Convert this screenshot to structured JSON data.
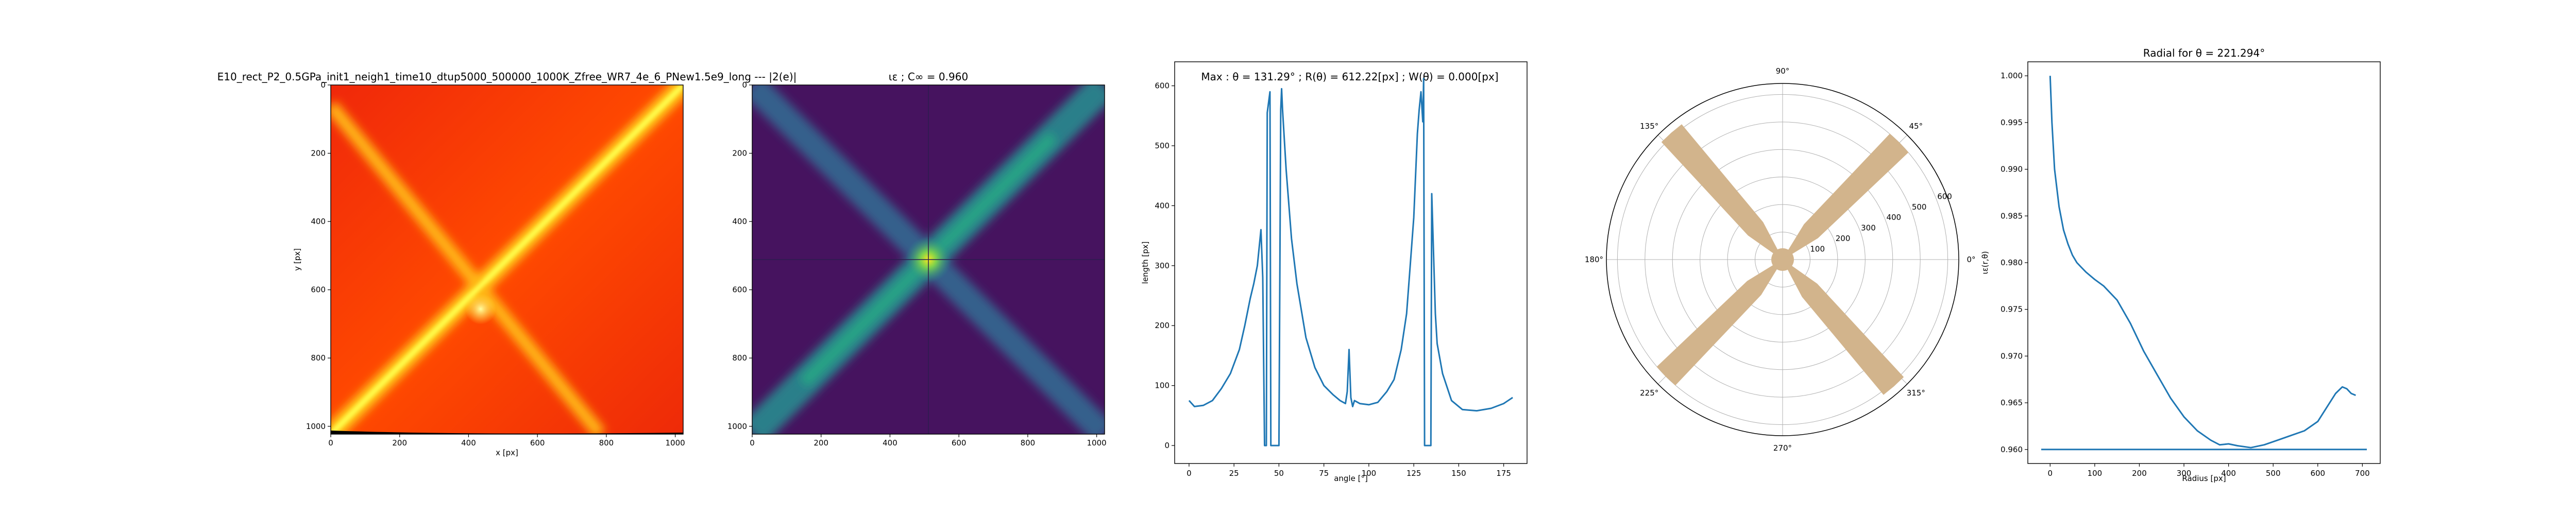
{
  "chart_data": [
    {
      "type": "heatmap",
      "title": "E10_rect_P2_0.5GPa_init1_neigh1_time10_dtup5000_500000_1000K_Zfree_WR7_4e_6_PNew1.5e9_long --- |2(e)|",
      "xlabel": "x [px]",
      "ylabel": "y [px]",
      "xlim": [
        0,
        1023
      ],
      "ylim": [
        1023,
        0
      ],
      "xticks": [
        "0",
        "200",
        "400",
        "600",
        "800",
        "1000"
      ],
      "yticks": [
        "0",
        "200",
        "400",
        "600",
        "800",
        "1000"
      ],
      "colormap": "autumn",
      "colors": {
        "low": "#e81a00",
        "mid": "#ff6a00",
        "high": "#ffff33"
      },
      "features": {
        "band_a": [
          [
            0,
            1023
          ],
          [
            1023,
            0
          ]
        ],
        "band_b": [
          [
            0,
            60
          ],
          [
            780,
            1023
          ]
        ],
        "peak": [
          435,
          635
        ]
      }
    },
    {
      "type": "heatmap",
      "title": "ιε ; C∞ = 0.960",
      "xlabel": "",
      "ylabel": "",
      "xlim": [
        0,
        1023
      ],
      "ylim": [
        1023,
        0
      ],
      "xticks": [
        "0",
        "200",
        "400",
        "600",
        "800",
        "1000"
      ],
      "yticks": [
        "0",
        "200",
        "400",
        "600",
        "800",
        "1000"
      ],
      "colormap": "viridis",
      "colors": {
        "low": "#45125e",
        "mid": "#27908c",
        "high": "#f2e31a"
      },
      "features": {
        "band_a": [
          [
            0,
            1023
          ],
          [
            1023,
            0
          ]
        ],
        "band_b": [
          [
            0,
            0
          ],
          [
            1023,
            1023
          ]
        ],
        "peak": [
          511,
          511
        ]
      }
    },
    {
      "type": "line",
      "title": "Max : θ = 131.29° ; R(θ) = 612.22[px] ; W(θ) = 0.000[px]",
      "xlabel": "angle [°]",
      "ylabel": "length [px]",
      "xlim": [
        -8,
        188
      ],
      "ylim": [
        -30,
        640
      ],
      "xticks": [
        0,
        25,
        50,
        75,
        100,
        125,
        150,
        175
      ],
      "yticks": [
        0,
        100,
        200,
        300,
        400,
        500,
        600
      ],
      "x": [
        0,
        3,
        8,
        13,
        18,
        23,
        28,
        31,
        34,
        36,
        38,
        39,
        40,
        41,
        42,
        43,
        43.5,
        45,
        45.5,
        46,
        47,
        48,
        49,
        50,
        51,
        51.5,
        52,
        54,
        57,
        60,
        65,
        70,
        75,
        80,
        84,
        87,
        88,
        89,
        90,
        91,
        92,
        95,
        100,
        105,
        110,
        114,
        118,
        121,
        123,
        125,
        126,
        127,
        128,
        129,
        130,
        130.5,
        131,
        131.29,
        132,
        133,
        134,
        134.5,
        135,
        136,
        137,
        138,
        141,
        146,
        152,
        160,
        168,
        175,
        180
      ],
      "y": [
        75,
        65,
        67,
        75,
        95,
        120,
        160,
        200,
        245,
        270,
        300,
        330,
        360,
        280,
        0,
        0,
        555,
        590,
        0,
        0,
        0,
        0,
        0,
        0,
        560,
        595,
        560,
        460,
        345,
        270,
        180,
        130,
        100,
        85,
        75,
        70,
        90,
        160,
        80,
        65,
        75,
        70,
        68,
        72,
        90,
        110,
        160,
        220,
        300,
        380,
        450,
        520,
        560,
        590,
        540,
        612,
        0,
        0,
        0,
        0,
        0,
        0,
        420,
        320,
        220,
        170,
        120,
        75,
        60,
        58,
        62,
        70,
        80
      ]
    },
    {
      "type": "polar",
      "title": "",
      "theta_labels": [
        "0°",
        "45°",
        "90°",
        "135°",
        "180°",
        "225°",
        "270°",
        "315°"
      ],
      "r_ticks": [
        100,
        200,
        300,
        400,
        500,
        600
      ],
      "r_tick_labels": [
        "100",
        "200",
        "300",
        "400",
        "500",
        "600"
      ],
      "rlim": [
        0,
        640
      ],
      "fill_color": "#d2b48c",
      "lobes": [
        {
          "theta": 45,
          "r": 600
        },
        {
          "theta": 131.29,
          "r": 612.22
        },
        {
          "theta": 225,
          "r": 600
        },
        {
          "theta": 311.29,
          "r": 612.22
        }
      ],
      "lobe_half_width_deg": 4.5
    },
    {
      "type": "line",
      "title": "Radial for θ = 221.294°",
      "xlabel": "Radius [px]",
      "ylabel": "ιε(r,θ)",
      "xlim": [
        -50,
        740
      ],
      "ylim": [
        0.9585,
        1.0015
      ],
      "xticks": [
        0,
        100,
        200,
        300,
        400,
        500,
        600,
        700
      ],
      "yticks": [
        0.96,
        0.965,
        0.97,
        0.975,
        0.98,
        0.985,
        0.99,
        0.995,
        1.0
      ],
      "ytick_labels": [
        "0.960",
        "0.965",
        "0.970",
        "0.975",
        "0.980",
        "0.985",
        "0.990",
        "0.995",
        "1.000"
      ],
      "baseline": {
        "x": [
          -20,
          710
        ],
        "y": 0.96
      },
      "x": [
        0,
        4,
        10,
        20,
        30,
        40,
        50,
        60,
        70,
        80,
        100,
        120,
        150,
        180,
        210,
        240,
        270,
        300,
        330,
        360,
        380,
        400,
        420,
        450,
        480,
        510,
        540,
        570,
        600,
        620,
        640,
        655,
        665,
        675,
        685
      ],
      "y": [
        1.0,
        0.995,
        0.99,
        0.986,
        0.9835,
        0.982,
        0.9808,
        0.98,
        0.9795,
        0.979,
        0.9782,
        0.9775,
        0.976,
        0.9735,
        0.9705,
        0.968,
        0.9655,
        0.9635,
        0.962,
        0.961,
        0.9605,
        0.9606,
        0.9604,
        0.9602,
        0.9605,
        0.961,
        0.9615,
        0.962,
        0.963,
        0.9645,
        0.966,
        0.9667,
        0.9665,
        0.966,
        0.9658
      ]
    }
  ]
}
